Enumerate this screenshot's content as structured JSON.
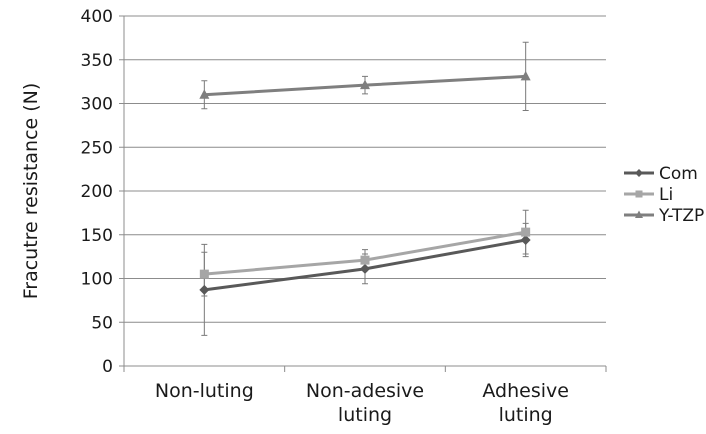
{
  "chart_data": {
    "type": "line",
    "title": "",
    "xlabel": "",
    "ylabel": "Fracutre resistance (N)",
    "categories": [
      [
        "Non-luting"
      ],
      [
        "Non-adesive",
        "luting"
      ],
      [
        "Adhesive",
        "luting"
      ]
    ],
    "ylim": [
      0,
      400
    ],
    "yticks": [
      0,
      50,
      100,
      150,
      200,
      250,
      300,
      350,
      400
    ],
    "grid": true,
    "legend_position": "right",
    "error_bars": true,
    "series": [
      {
        "name": "Com",
        "values": [
          87,
          111,
          144
        ],
        "errors": [
          52,
          17,
          19
        ],
        "color": "#595959",
        "marker": "diamond"
      },
      {
        "name": "Li",
        "values": [
          105,
          121,
          153
        ],
        "errors": [
          25,
          12,
          25
        ],
        "color": "#a6a6a6",
        "marker": "square"
      },
      {
        "name": "Y-TZP",
        "values": [
          310,
          321,
          331
        ],
        "errors": [
          16,
          10,
          39
        ],
        "color": "#7f7f7f",
        "marker": "triangle"
      }
    ]
  }
}
